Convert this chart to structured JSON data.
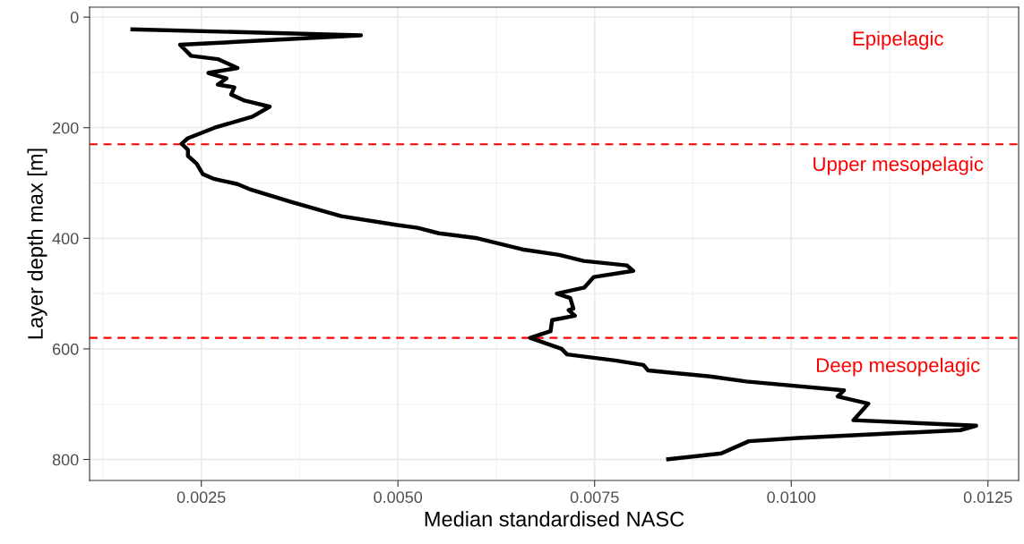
{
  "chart_data": {
    "type": "line",
    "xlabel": "Median standardised NASC",
    "ylabel": "Layer depth max [m]",
    "x": [
      0.0016,
      0.00453,
      0.0036,
      0.00223,
      0.00237,
      0.00271,
      0.00296,
      0.00259,
      0.00282,
      0.00271,
      0.00292,
      0.00288,
      0.00305,
      0.00337,
      0.00315,
      0.00267,
      0.00233,
      0.00225,
      0.00233,
      0.00233,
      0.00244,
      0.00252,
      0.00267,
      0.00296,
      0.00311,
      0.00366,
      0.00428,
      0.00499,
      0.00525,
      0.00552,
      0.00601,
      0.00658,
      0.00705,
      0.00736,
      0.00791,
      0.00799,
      0.00749,
      0.00737,
      0.00702,
      0.00719,
      0.00723,
      0.00717,
      0.00725,
      0.00696,
      0.00694,
      0.00668,
      0.00708,
      0.00715,
      0.00776,
      0.00812,
      0.00818,
      0.00897,
      0.00943,
      0.01067,
      0.01059,
      0.01098,
      0.01079,
      0.01235,
      0.01215,
      0.01009,
      0.00946,
      0.00911,
      0.00841
    ],
    "series": [
      {
        "color": "#000000",
        "values": [
          22,
          33,
          40,
          50,
          70,
          76,
          92,
          101,
          111,
          122,
          127,
          140,
          151,
          162,
          180,
          200,
          219,
          229,
          240,
          251,
          265,
          284,
          293,
          302,
          311,
          335,
          360,
          376,
          381,
          391,
          400,
          420,
          430,
          441,
          449,
          459,
          470,
          489,
          500,
          508,
          527,
          530,
          540,
          548,
          568,
          580,
          600,
          610,
          621,
          629,
          639,
          650,
          659,
          675,
          686,
          699,
          729,
          739,
          747,
          761,
          767,
          789,
          800
        ]
      }
    ],
    "xlim": [
      0.00108,
      0.01289
    ],
    "ylim": [
      838,
      -18
    ],
    "xticks": [
      {
        "value": 0.0025,
        "label": "0.0025"
      },
      {
        "value": 0.005,
        "label": "0.0050"
      },
      {
        "value": 0.0075,
        "label": "0.0075"
      },
      {
        "value": 0.01,
        "label": "0.0100"
      },
      {
        "value": 0.0125,
        "label": "0.0125"
      }
    ],
    "yticks": [
      0,
      200,
      400,
      600,
      800
    ],
    "ref_lines": [
      {
        "axis": "y",
        "value": 230,
        "color": "#ff0000",
        "line_style": "dashed"
      },
      {
        "axis": "y",
        "value": 580,
        "color": "#ff0000",
        "line_style": "dashed"
      }
    ],
    "annotations": [
      "Epipelagic",
      "Upper mesopelagic",
      "Deep mesopelagic"
    ],
    "grid": true,
    "marker": "none",
    "line_style": "solid"
  }
}
